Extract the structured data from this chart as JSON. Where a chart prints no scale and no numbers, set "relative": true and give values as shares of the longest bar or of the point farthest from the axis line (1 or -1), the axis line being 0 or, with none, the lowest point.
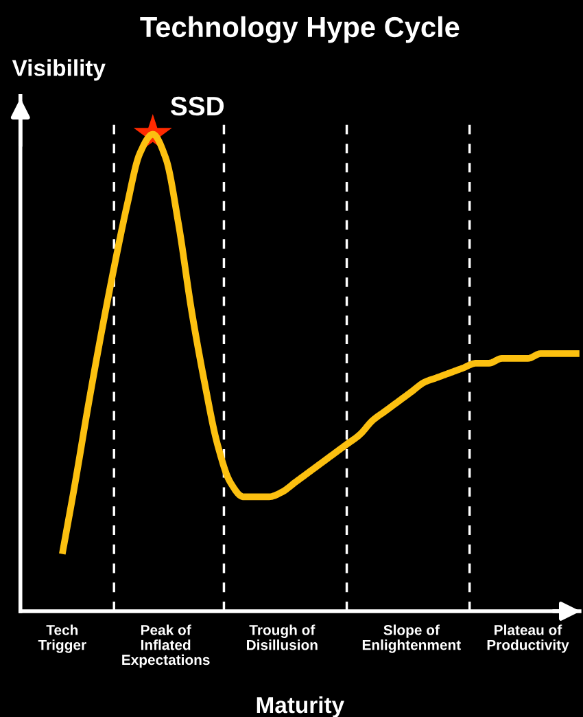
{
  "chart_data": {
    "type": "line",
    "title": "Technology Hype Cycle",
    "xlabel": "Maturity",
    "ylabel": "Visibility",
    "relative": true,
    "categories": [
      "Tech\nTrigger",
      null,
      null,
      null,
      null,
      null,
      null,
      null,
      "Peak of\nInflated\nExpectations",
      null,
      null,
      null,
      null,
      null,
      null,
      null,
      null,
      "Trough of\nDisillusion",
      null,
      null,
      null,
      null,
      null,
      null,
      null,
      null,
      null,
      "Slope of\nEnlightenment",
      null,
      null,
      null,
      null,
      null,
      null,
      null,
      null,
      "Plateau of\nProductivity",
      null,
      null,
      null,
      null
    ],
    "series": [
      {
        "color": "#fcc010",
        "values": [
          0.12,
          0.27,
          0.43,
          0.58,
          0.72,
          0.85,
          0.96,
          1.0,
          0.95,
          0.81,
          0.63,
          0.48,
          0.35,
          0.27,
          0.24,
          0.24,
          0.24,
          0.25,
          0.27,
          0.29,
          0.31,
          0.33,
          0.35,
          0.37,
          0.4,
          0.42,
          0.44,
          0.46,
          0.48,
          0.49,
          0.5,
          0.51,
          0.52,
          0.52,
          0.53,
          0.53,
          0.53,
          0.54,
          0.54,
          0.54,
          0.54
        ]
      },
      {
        "type": "scatter",
        "name": "SSD",
        "color": "#ff2a00",
        "marker": "star",
        "values": [
          null,
          null,
          null,
          null,
          null,
          null,
          null,
          1.0,
          null,
          null,
          null,
          null,
          null,
          null,
          null,
          null,
          null,
          null,
          null,
          null,
          null,
          null,
          null,
          null,
          null,
          null,
          null,
          null,
          null,
          null,
          null,
          null,
          null,
          null,
          null,
          null,
          null,
          null,
          null,
          null,
          null
        ]
      }
    ],
    "tick_labels": "x"
  }
}
